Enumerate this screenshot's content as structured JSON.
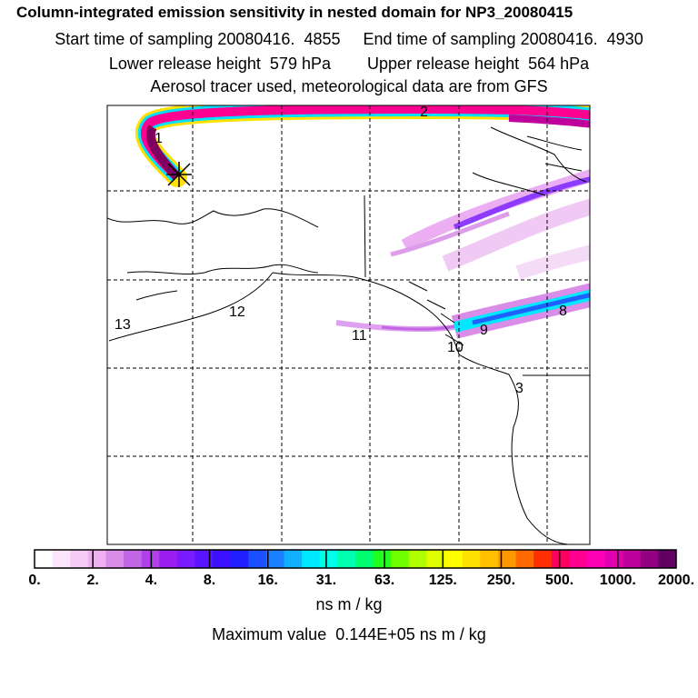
{
  "header": {
    "title": "Column-integrated emission sensitivity in nested domain for NP3_20080415",
    "sampling_line": "Start time of sampling 20080416.  4855     End time of sampling 20080416.  4930",
    "release_line": "Lower release height  579 hPa        Upper release height  564 hPa",
    "tracer_line": "Aerosol tracer used, meteorological data are from GFS"
  },
  "map": {
    "release_marker": "release-point-cross",
    "labels": [
      "1",
      "2",
      "3",
      "8",
      "9",
      "10",
      "11",
      "12",
      "13"
    ]
  },
  "colorbar": {
    "ticks": [
      "0.",
      "2.",
      "4.",
      "8.",
      "16.",
      "31.",
      "63.",
      "125.",
      "250.",
      "500.",
      "1000.",
      "2000."
    ],
    "units": "ns m / kg",
    "colors": [
      "#ffffff",
      "#fbe6fb",
      "#f6ccf6",
      "#eeb0f0",
      "#d98ce8",
      "#c266e6",
      "#b040e8",
      "#9a1ef0",
      "#7a1aff",
      "#5a14ff",
      "#3b10ff",
      "#2020ff",
      "#1a50ff",
      "#1a80ff",
      "#10b0ff",
      "#00e8ff",
      "#00ffe8",
      "#00ffb0",
      "#00ff70",
      "#20ff20",
      "#70ff00",
      "#b0ff00",
      "#e0ff00",
      "#ffff00",
      "#ffe000",
      "#ffc000",
      "#ff9800",
      "#ff6a00",
      "#ff3000",
      "#ff0060",
      "#ff0090",
      "#ff00b4",
      "#e000b0",
      "#c0009a",
      "#900080",
      "#600060"
    ]
  },
  "max_value_line": "Maximum value  0.144E+05 ns m / kg"
}
